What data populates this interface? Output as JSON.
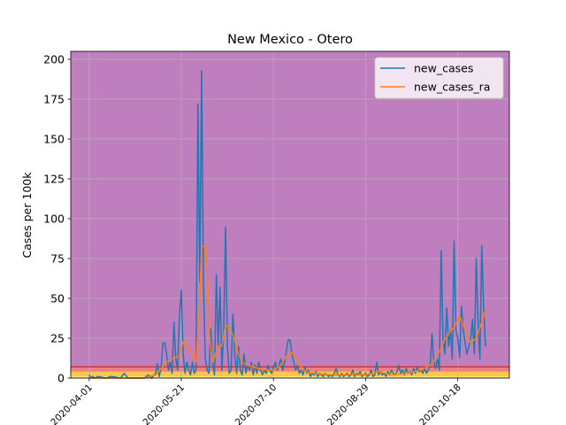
{
  "chart_data": {
    "type": "line",
    "title": "New Mexico - Otero",
    "xlabel": "",
    "ylabel": "Cases per 100k",
    "x_start": "2020-03-22",
    "x_end": "2020-11-15",
    "xlim": [
      "2020-03-22",
      "2020-11-15"
    ],
    "ylim": [
      0,
      205
    ],
    "yticks": [
      0,
      25,
      50,
      75,
      100,
      125,
      150,
      175,
      200
    ],
    "ytick_labels": [
      "0",
      "25",
      "50",
      "75",
      "100",
      "125",
      "150",
      "175",
      "200"
    ],
    "xticks": [
      "2020-04-01",
      "2020-05-21",
      "2020-07-10",
      "2020-08-29",
      "2020-10-18"
    ],
    "xtick_labels": [
      "2020-04-01",
      "2020-05-21",
      "2020-07-10",
      "2020-08-29",
      "2020-10-18"
    ],
    "grid": true,
    "legend_position": "top-right",
    "background_bands": [
      {
        "from": 0,
        "to": 1,
        "color": "#f5e66a"
      },
      {
        "from": 1,
        "to": 4,
        "color": "#f9c74f"
      },
      {
        "from": 4,
        "to": 7,
        "color": "#f08080"
      },
      {
        "from": 7,
        "to": 205,
        "color": "#bf7fbf"
      }
    ],
    "band_line": {
      "value": 7,
      "color": "#d62728"
    },
    "series": [
      {
        "name": "new_cases",
        "color": "#1f77b4",
        "points": [
          [
            "2020-04-01",
            2
          ],
          [
            "2020-04-02",
            0
          ],
          [
            "2020-04-03",
            1
          ],
          [
            "2020-04-04",
            0
          ],
          [
            "2020-04-06",
            1
          ],
          [
            "2020-04-10",
            0
          ],
          [
            "2020-04-13",
            1
          ],
          [
            "2020-04-18",
            0
          ],
          [
            "2020-04-20",
            3
          ],
          [
            "2020-04-22",
            0
          ],
          [
            "2020-05-01",
            0
          ],
          [
            "2020-05-03",
            2
          ],
          [
            "2020-05-05",
            0
          ],
          [
            "2020-05-07",
            3
          ],
          [
            "2020-05-08",
            9
          ],
          [
            "2020-05-09",
            1
          ],
          [
            "2020-05-10",
            6
          ],
          [
            "2020-05-11",
            22
          ],
          [
            "2020-05-12",
            22
          ],
          [
            "2020-05-13",
            15
          ],
          [
            "2020-05-14",
            5
          ],
          [
            "2020-05-15",
            10
          ],
          [
            "2020-05-16",
            3
          ],
          [
            "2020-05-17",
            35
          ],
          [
            "2020-05-18",
            12
          ],
          [
            "2020-05-19",
            5
          ],
          [
            "2020-05-20",
            40
          ],
          [
            "2020-05-21",
            55
          ],
          [
            "2020-05-22",
            15
          ],
          [
            "2020-05-23",
            3
          ],
          [
            "2020-05-24",
            10
          ],
          [
            "2020-05-25",
            5
          ],
          [
            "2020-05-26",
            2
          ],
          [
            "2020-05-27",
            10
          ],
          [
            "2020-05-28",
            3
          ],
          [
            "2020-05-29",
            5
          ],
          [
            "2020-05-30",
            172
          ],
          [
            "2020-05-31",
            60
          ],
          [
            "2020-06-01",
            193
          ],
          [
            "2020-06-02",
            60
          ],
          [
            "2020-06-03",
            12
          ],
          [
            "2020-06-04",
            5
          ],
          [
            "2020-06-05",
            3
          ],
          [
            "2020-06-06",
            31
          ],
          [
            "2020-06-07",
            10
          ],
          [
            "2020-06-08",
            2
          ],
          [
            "2020-06-09",
            65
          ],
          [
            "2020-06-10",
            20
          ],
          [
            "2020-06-11",
            57
          ],
          [
            "2020-06-12",
            5
          ],
          [
            "2020-06-13",
            30
          ],
          [
            "2020-06-14",
            95
          ],
          [
            "2020-06-15",
            20
          ],
          [
            "2020-06-16",
            3
          ],
          [
            "2020-06-17",
            5
          ],
          [
            "2020-06-18",
            40
          ],
          [
            "2020-06-19",
            15
          ],
          [
            "2020-06-20",
            3
          ],
          [
            "2020-06-21",
            20
          ],
          [
            "2020-06-22",
            5
          ],
          [
            "2020-06-23",
            2
          ],
          [
            "2020-06-24",
            15
          ],
          [
            "2020-06-25",
            3
          ],
          [
            "2020-06-26",
            8
          ],
          [
            "2020-06-27",
            5
          ],
          [
            "2020-06-28",
            10
          ],
          [
            "2020-06-29",
            2
          ],
          [
            "2020-06-30",
            8
          ],
          [
            "2020-07-01",
            3
          ],
          [
            "2020-07-02",
            10
          ],
          [
            "2020-07-03",
            5
          ],
          [
            "2020-07-04",
            2
          ],
          [
            "2020-07-05",
            5
          ],
          [
            "2020-07-06",
            3
          ],
          [
            "2020-07-07",
            8
          ],
          [
            "2020-07-08",
            5
          ],
          [
            "2020-07-09",
            3
          ],
          [
            "2020-07-10",
            7
          ],
          [
            "2020-07-11",
            10
          ],
          [
            "2020-07-12",
            5
          ],
          [
            "2020-07-13",
            8
          ],
          [
            "2020-07-14",
            12
          ],
          [
            "2020-07-15",
            5
          ],
          [
            "2020-07-16",
            10
          ],
          [
            "2020-07-17",
            17
          ],
          [
            "2020-07-18",
            24
          ],
          [
            "2020-07-19",
            24
          ],
          [
            "2020-07-20",
            15
          ],
          [
            "2020-07-21",
            10
          ],
          [
            "2020-07-22",
            5
          ],
          [
            "2020-07-23",
            8
          ],
          [
            "2020-07-24",
            3
          ],
          [
            "2020-07-25",
            5
          ],
          [
            "2020-07-26",
            2
          ],
          [
            "2020-07-27",
            7
          ],
          [
            "2020-07-28",
            3
          ],
          [
            "2020-07-29",
            5
          ],
          [
            "2020-07-30",
            1
          ],
          [
            "2020-07-31",
            3
          ],
          [
            "2020-08-01",
            2
          ],
          [
            "2020-08-02",
            4
          ],
          [
            "2020-08-03",
            1
          ],
          [
            "2020-08-04",
            3
          ],
          [
            "2020-08-05",
            2
          ],
          [
            "2020-08-06",
            1
          ],
          [
            "2020-08-07",
            3
          ],
          [
            "2020-08-08",
            2
          ],
          [
            "2020-08-09",
            1
          ],
          [
            "2020-08-10",
            2
          ],
          [
            "2020-08-11",
            1
          ],
          [
            "2020-08-12",
            3
          ],
          [
            "2020-08-13",
            6
          ],
          [
            "2020-08-14",
            2
          ],
          [
            "2020-08-15",
            1
          ],
          [
            "2020-08-16",
            3
          ],
          [
            "2020-08-17",
            1
          ],
          [
            "2020-08-18",
            2
          ],
          [
            "2020-08-19",
            3
          ],
          [
            "2020-08-20",
            1
          ],
          [
            "2020-08-21",
            2
          ],
          [
            "2020-08-22",
            5
          ],
          [
            "2020-08-23",
            1
          ],
          [
            "2020-08-24",
            3
          ],
          [
            "2020-08-25",
            2
          ],
          [
            "2020-08-26",
            4
          ],
          [
            "2020-08-27",
            1
          ],
          [
            "2020-08-28",
            2
          ],
          [
            "2020-08-29",
            3
          ],
          [
            "2020-08-30",
            1
          ],
          [
            "2020-08-31",
            2
          ],
          [
            "2020-09-01",
            5
          ],
          [
            "2020-09-02",
            1
          ],
          [
            "2020-09-03",
            2
          ],
          [
            "2020-09-04",
            10
          ],
          [
            "2020-09-05",
            2
          ],
          [
            "2020-09-06",
            4
          ],
          [
            "2020-09-07",
            2
          ],
          [
            "2020-09-08",
            3
          ],
          [
            "2020-09-09",
            1
          ],
          [
            "2020-09-10",
            4
          ],
          [
            "2020-09-11",
            2
          ],
          [
            "2020-09-12",
            5
          ],
          [
            "2020-09-13",
            3
          ],
          [
            "2020-09-14",
            2
          ],
          [
            "2020-09-15",
            4
          ],
          [
            "2020-09-16",
            8
          ],
          [
            "2020-09-17",
            3
          ],
          [
            "2020-09-18",
            5
          ],
          [
            "2020-09-19",
            2
          ],
          [
            "2020-09-20",
            6
          ],
          [
            "2020-09-21",
            3
          ],
          [
            "2020-09-22",
            4
          ],
          [
            "2020-09-23",
            2
          ],
          [
            "2020-09-24",
            6
          ],
          [
            "2020-09-25",
            3
          ],
          [
            "2020-09-26",
            7
          ],
          [
            "2020-09-27",
            4
          ],
          [
            "2020-09-28",
            5
          ],
          [
            "2020-09-29",
            3
          ],
          [
            "2020-09-30",
            6
          ],
          [
            "2020-10-01",
            3
          ],
          [
            "2020-10-02",
            5
          ],
          [
            "2020-10-03",
            8
          ],
          [
            "2020-10-04",
            28
          ],
          [
            "2020-10-05",
            10
          ],
          [
            "2020-10-06",
            6
          ],
          [
            "2020-10-07",
            12
          ],
          [
            "2020-10-08",
            5
          ],
          [
            "2020-10-09",
            80
          ],
          [
            "2020-10-10",
            25
          ],
          [
            "2020-10-11",
            15
          ],
          [
            "2020-10-12",
            44
          ],
          [
            "2020-10-13",
            20
          ],
          [
            "2020-10-14",
            30
          ],
          [
            "2020-10-15",
            12
          ],
          [
            "2020-10-16",
            86
          ],
          [
            "2020-10-17",
            30
          ],
          [
            "2020-10-18",
            25
          ],
          [
            "2020-10-19",
            13
          ],
          [
            "2020-10-20",
            45
          ],
          [
            "2020-10-21",
            30
          ],
          [
            "2020-10-22",
            22
          ],
          [
            "2020-10-23",
            15
          ],
          [
            "2020-10-24",
            20
          ],
          [
            "2020-10-25",
            25
          ],
          [
            "2020-10-26",
            37
          ],
          [
            "2020-10-27",
            15
          ],
          [
            "2020-10-28",
            75
          ],
          [
            "2020-10-29",
            35
          ],
          [
            "2020-10-30",
            12
          ],
          [
            "2020-10-31",
            83
          ],
          [
            "2020-11-01",
            45
          ],
          [
            "2020-11-02",
            20
          ]
        ]
      },
      {
        "name": "new_cases_ra",
        "color": "#ff7f0e",
        "points": [
          [
            "2020-04-01",
            0
          ],
          [
            "2020-05-01",
            0
          ],
          [
            "2020-05-07",
            2
          ],
          [
            "2020-05-10",
            6
          ],
          [
            "2020-05-13",
            10
          ],
          [
            "2020-05-16",
            12
          ],
          [
            "2020-05-18",
            13
          ],
          [
            "2020-05-20",
            14
          ],
          [
            "2020-05-22",
            23
          ],
          [
            "2020-05-24",
            20
          ],
          [
            "2020-05-27",
            15
          ],
          [
            "2020-05-29",
            10
          ],
          [
            "2020-05-31",
            50
          ],
          [
            "2020-06-01",
            83
          ],
          [
            "2020-06-03",
            82
          ],
          [
            "2020-06-05",
            30
          ],
          [
            "2020-06-07",
            10
          ],
          [
            "2020-06-10",
            20
          ],
          [
            "2020-06-12",
            20
          ],
          [
            "2020-06-14",
            33
          ],
          [
            "2020-06-16",
            32
          ],
          [
            "2020-06-18",
            27
          ],
          [
            "2020-06-21",
            15
          ],
          [
            "2020-06-23",
            10
          ],
          [
            "2020-06-26",
            8
          ],
          [
            "2020-06-29",
            7
          ],
          [
            "2020-07-02",
            6
          ],
          [
            "2020-07-06",
            5
          ],
          [
            "2020-07-10",
            5
          ],
          [
            "2020-07-14",
            8
          ],
          [
            "2020-07-17",
            14
          ],
          [
            "2020-07-20",
            16
          ],
          [
            "2020-07-22",
            12
          ],
          [
            "2020-07-25",
            7
          ],
          [
            "2020-07-28",
            4
          ],
          [
            "2020-08-01",
            3
          ],
          [
            "2020-08-10",
            2
          ],
          [
            "2020-08-20",
            2
          ],
          [
            "2020-08-29",
            2
          ],
          [
            "2020-09-05",
            4
          ],
          [
            "2020-09-12",
            2
          ],
          [
            "2020-09-20",
            3
          ],
          [
            "2020-09-28",
            5
          ],
          [
            "2020-10-03",
            8
          ],
          [
            "2020-10-07",
            14
          ],
          [
            "2020-10-10",
            22
          ],
          [
            "2020-10-13",
            28
          ],
          [
            "2020-10-16",
            32
          ],
          [
            "2020-10-19",
            39
          ],
          [
            "2020-10-22",
            30
          ],
          [
            "2020-10-25",
            22
          ],
          [
            "2020-10-28",
            25
          ],
          [
            "2020-10-31",
            35
          ],
          [
            "2020-11-02",
            43
          ]
        ]
      }
    ]
  }
}
